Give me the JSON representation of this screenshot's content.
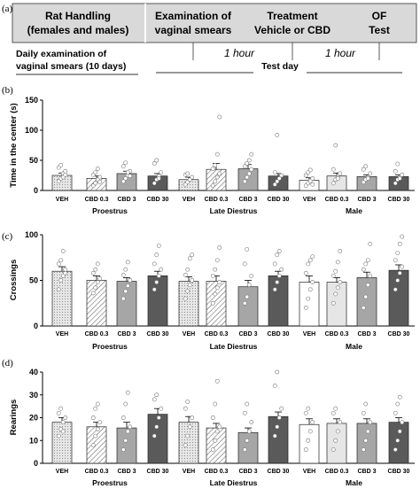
{
  "panel_labels": [
    "(a)",
    "(b)",
    "(c)",
    "(d)"
  ],
  "timeline": {
    "box1_line1": "Rat Handling",
    "box1_line2": "(females and males)",
    "box2_line1": "Examination of",
    "box2_line2": "vaginal smears",
    "box3_line1": "Treatment",
    "box3_line2": "Vehicle or CBD",
    "box4_line1": "OF",
    "box4_line2": "Test",
    "daily_line1": "Daily examination of",
    "daily_line2": "vaginal smears (10 days)",
    "interval1": "1 hour",
    "interval2": "1 hour",
    "test_day": "Test day"
  },
  "colors": {
    "header_bg": "#d9d9d9",
    "bar_light": "#e6e6e6",
    "bar_mid": "#a6a6a6",
    "bar_dark": "#5a5a5a",
    "bar_white": "#ffffff"
  },
  "chart_data": [
    {
      "type": "bar",
      "ylabel": "Time in the center (s)",
      "ylim": [
        0,
        150
      ],
      "yticks": [
        0,
        50,
        100,
        150
      ],
      "categories": [
        "VEH",
        "CBD 0.3",
        "CBD 3",
        "CBD 30",
        "VEH",
        "CBD 0.3",
        "CBD 3",
        "CBD 30",
        "VEH",
        "CBD 0.3",
        "CBD 3",
        "CBD 30"
      ],
      "groups": [
        {
          "name": "Proestrus",
          "start": 0,
          "end": 3
        },
        {
          "name": "Late Diestrus",
          "start": 4,
          "end": 7
        },
        {
          "name": "Male",
          "start": 8,
          "end": 11
        }
      ],
      "values": [
        25,
        20,
        28,
        24,
        18,
        35,
        36,
        24,
        17,
        24,
        23,
        23
      ],
      "errors": [
        4,
        4,
        4,
        4,
        4,
        10,
        7,
        4,
        4,
        5,
        3,
        3
      ],
      "points": [
        [
          15,
          20,
          28,
          32,
          38,
          42,
          22,
          26
        ],
        [
          8,
          12,
          18,
          22,
          26,
          30,
          36,
          14
        ],
        [
          15,
          20,
          25,
          32,
          40,
          46,
          30,
          24
        ],
        [
          12,
          18,
          24,
          30,
          45,
          50,
          20
        ],
        [
          10,
          14,
          18,
          22,
          26,
          28
        ],
        [
          8,
          15,
          22,
          28,
          36,
          42,
          60,
          122
        ],
        [
          15,
          22,
          28,
          35,
          40,
          45,
          50,
          60
        ],
        [
          10,
          15,
          20,
          25,
          30,
          92
        ],
        [
          8,
          12,
          16,
          20,
          25,
          30,
          34,
          10
        ],
        [
          12,
          18,
          22,
          28,
          35,
          75,
          20
        ],
        [
          14,
          18,
          22,
          28,
          35,
          40,
          20
        ],
        [
          12,
          18,
          22,
          26,
          32,
          44,
          20
        ]
      ]
    },
    {
      "type": "bar",
      "ylabel": "Crossings",
      "ylim": [
        0,
        100
      ],
      "yticks": [
        0,
        50,
        100
      ],
      "categories": [
        "VEH",
        "CBD 0.3",
        "CBD 3",
        "CBD 30",
        "VEH",
        "CBD 0.3",
        "CBD 3",
        "CBD 30",
        "VEH",
        "CBD 0.3",
        "CBD 3",
        "CBD 30"
      ],
      "groups": [
        {
          "name": "Proestrus",
          "start": 0,
          "end": 3
        },
        {
          "name": "Late Diestrus",
          "start": 4,
          "end": 7
        },
        {
          "name": "Male",
          "start": 8,
          "end": 11
        }
      ],
      "values": [
        60,
        50,
        49,
        55,
        49,
        49,
        43,
        55,
        48,
        48,
        53,
        61
      ],
      "errors": [
        5,
        5,
        4,
        5,
        5,
        6,
        7,
        5,
        7,
        5,
        6,
        6
      ],
      "points": [
        [
          40,
          50,
          55,
          62,
          68,
          72,
          82,
          58
        ],
        [
          36,
          42,
          48,
          52,
          58,
          62,
          68
        ],
        [
          30,
          38,
          44,
          50,
          56,
          62,
          70
        ],
        [
          40,
          48,
          55,
          62,
          68,
          78,
          88
        ],
        [
          30,
          38,
          45,
          50,
          56,
          62,
          74,
          78
        ],
        [
          25,
          35,
          42,
          48,
          55,
          62,
          72,
          86
        ],
        [
          25,
          32,
          45,
          55,
          68,
          84
        ],
        [
          40,
          48,
          55,
          62,
          68,
          78,
          82
        ],
        [
          20,
          30,
          40,
          48,
          58,
          68,
          72,
          76
        ],
        [
          25,
          35,
          42,
          48,
          55,
          60,
          70,
          82
        ],
        [
          20,
          32,
          45,
          55,
          62,
          68,
          72,
          90
        ],
        [
          40,
          50,
          58,
          65,
          72,
          80,
          90,
          98
        ]
      ]
    },
    {
      "type": "bar",
      "ylabel": "Rearings",
      "ylim": [
        0,
        40
      ],
      "yticks": [
        0,
        10,
        20,
        30,
        40
      ],
      "categories": [
        "VEH",
        "CBD 0.3",
        "CBD 3",
        "CBD 30",
        "VEH",
        "CBD 0.3",
        "CBD 3",
        "CBD 30",
        "VEH",
        "CBD 0.3",
        "CBD 3",
        "CBD 30"
      ],
      "groups": [
        {
          "name": "Proestrus",
          "start": 0,
          "end": 3
        },
        {
          "name": "Late Diestrus",
          "start": 4,
          "end": 7
        },
        {
          "name": "Male",
          "start": 8,
          "end": 11
        }
      ],
      "values": [
        18,
        16,
        15.5,
        21.5,
        18,
        15.5,
        13.5,
        20.5,
        17,
        17.5,
        17.5,
        18
      ],
      "errors": [
        2,
        2,
        2.5,
        2.5,
        2.5,
        2,
        2,
        2,
        2.5,
        2,
        2,
        2
      ],
      "points": [
        [
          12,
          15,
          18,
          20,
          22,
          24,
          14
        ],
        [
          8,
          12,
          15,
          18,
          20,
          24,
          26
        ],
        [
          6,
          10,
          14,
          16,
          20,
          26,
          31
        ],
        [
          12,
          16,
          20,
          24,
          28,
          30
        ],
        [
          8,
          12,
          16,
          20,
          24,
          27
        ],
        [
          6,
          10,
          14,
          16,
          20,
          26,
          36
        ],
        [
          6,
          10,
          14,
          18,
          22,
          26
        ],
        [
          12,
          16,
          20,
          24,
          34,
          40
        ],
        [
          6,
          10,
          14,
          18,
          22,
          24
        ],
        [
          6,
          10,
          14,
          18,
          22,
          24
        ],
        [
          6,
          10,
          14,
          18,
          22,
          26
        ],
        [
          6,
          10,
          14,
          18,
          22,
          26,
          29
        ]
      ]
    }
  ]
}
